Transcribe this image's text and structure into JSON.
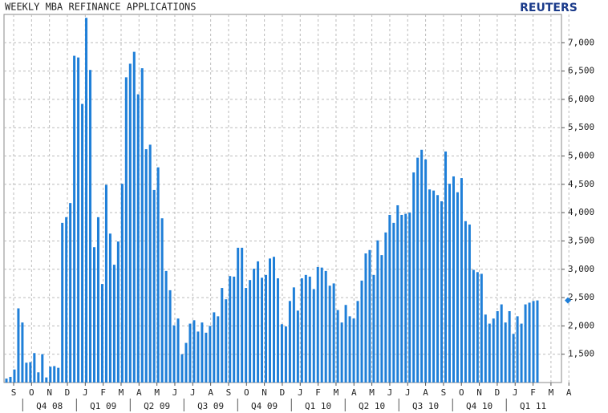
{
  "chart_data": {
    "type": "bar",
    "title": "WEEKLY MBA REFINANCE APPLICATIONS",
    "source": "REUTERS",
    "color": "#1f7fd8",
    "grid": true,
    "values": [
      1070,
      1100,
      1230,
      2310,
      2060,
      1350,
      1360,
      1520,
      1180,
      1500,
      1090,
      1280,
      1290,
      1260,
      3820,
      3920,
      4170,
      6770,
      6740,
      5920,
      7440,
      6520,
      3390,
      3920,
      2740,
      4490,
      3630,
      3080,
      3490,
      4510,
      6390,
      6630,
      6840,
      6090,
      6550,
      5120,
      5200,
      4400,
      4800,
      3900,
      2970,
      2630,
      2010,
      2130,
      1500,
      1700,
      2040,
      2100,
      1900,
      2060,
      1880,
      2000,
      2240,
      2170,
      2670,
      2470,
      2880,
      2870,
      3380,
      3380,
      2670,
      2810,
      3010,
      3140,
      2850,
      2900,
      3190,
      3220,
      2840,
      2030,
      1990,
      2440,
      2680,
      2270,
      2840,
      2900,
      2870,
      2650,
      3040,
      3030,
      2970,
      2710,
      2750,
      2280,
      2060,
      2370,
      2170,
      2130,
      2440,
      2800,
      3280,
      3340,
      2900,
      3510,
      3250,
      3650,
      3960,
      3820,
      4130,
      3960,
      3980,
      4000,
      4710,
      4970,
      5110,
      4940,
      4410,
      4390,
      4310,
      4200,
      5080,
      4510,
      4640,
      4360,
      4610,
      3850,
      3790,
      2990,
      2950,
      2920,
      2200,
      2040,
      2130,
      2260,
      2380,
      2060,
      2260,
      1860,
      2170,
      2040,
      2380,
      2410,
      2440,
      2450
    ],
    "months": [
      "S",
      "O",
      "N",
      "D",
      "J",
      "F",
      "M",
      "A",
      "M",
      "J",
      "J",
      "A",
      "S",
      "O",
      "N",
      "D",
      "J",
      "F",
      "M",
      "A",
      "M",
      "J",
      "J",
      "A",
      "S",
      "O",
      "N",
      "D",
      "J",
      "F",
      "M",
      "A"
    ],
    "quarters": [
      "Q4 08",
      "Q1 09",
      "Q2 09",
      "Q3 09",
      "Q4 09",
      "Q1 10",
      "Q2 10",
      "Q3 10",
      "Q4 10",
      "Q1 11"
    ],
    "ylim": [
      1000,
      7500
    ],
    "yticks": [
      {
        "value": 1500,
        "label": "1,500"
      },
      {
        "value": 2000,
        "label": "2,000"
      },
      {
        "value": 2500,
        "label": "2,500"
      },
      {
        "value": 3000,
        "label": "3,000"
      },
      {
        "value": 3500,
        "label": "3,500"
      },
      {
        "value": 4000,
        "label": "4,000"
      },
      {
        "value": 4500,
        "label": "4,500"
      },
      {
        "value": 5000,
        "label": "5,000"
      },
      {
        "value": 5500,
        "label": "5,500"
      },
      {
        "value": 6000,
        "label": "6,000"
      },
      {
        "value": 6500,
        "label": "6,500"
      },
      {
        "value": 7000,
        "label": "7,000"
      }
    ]
  }
}
